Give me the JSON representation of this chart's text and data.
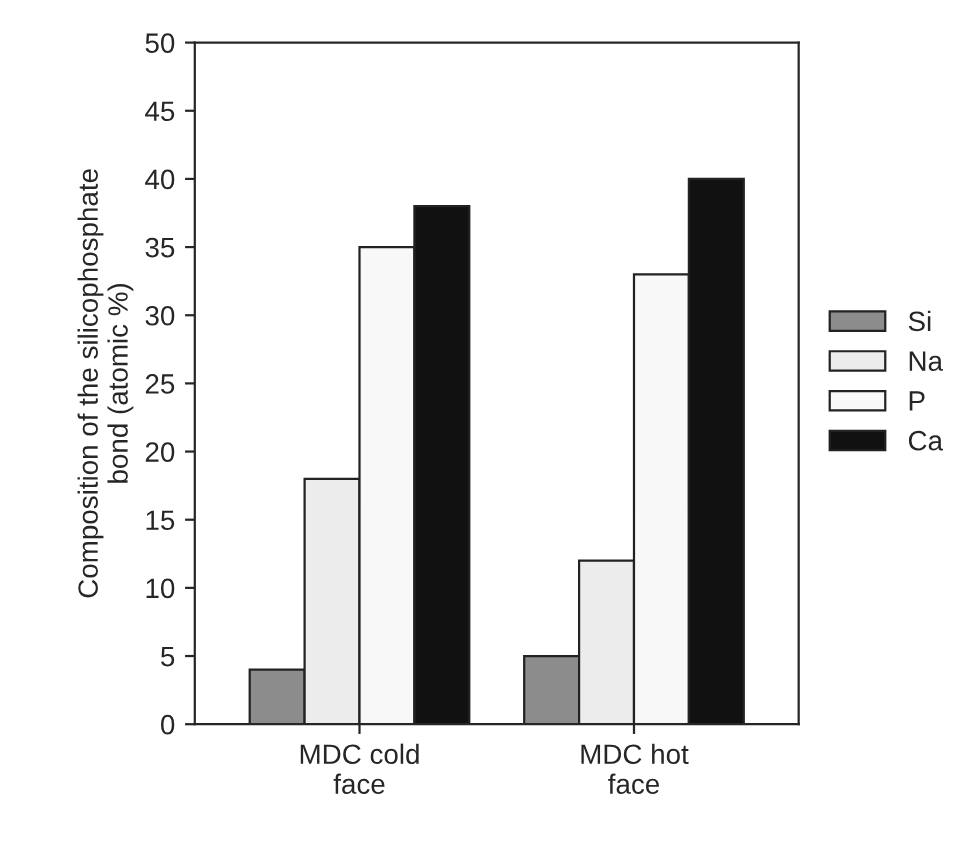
{
  "chart_data": {
    "type": "bar",
    "ylabel": "Composition of the silicophosphate\nbond (atomic %)",
    "categories": [
      "MDC cold\nface",
      "MDC hot\nface"
    ],
    "series": [
      {
        "name": "Si",
        "color": "#8c8c8c",
        "values": [
          4,
          5
        ]
      },
      {
        "name": "Na",
        "color": "#ececec",
        "values": [
          18,
          12
        ]
      },
      {
        "name": "P",
        "color": "#f8f8f8",
        "values": [
          35,
          33
        ]
      },
      {
        "name": "Ca",
        "color": "#111111",
        "values": [
          38,
          40
        ]
      }
    ],
    "ylim": [
      0,
      50
    ],
    "yticks": [
      0,
      5,
      10,
      15,
      20,
      25,
      30,
      35,
      40,
      45,
      50
    ],
    "grid": false,
    "legend": "right"
  }
}
